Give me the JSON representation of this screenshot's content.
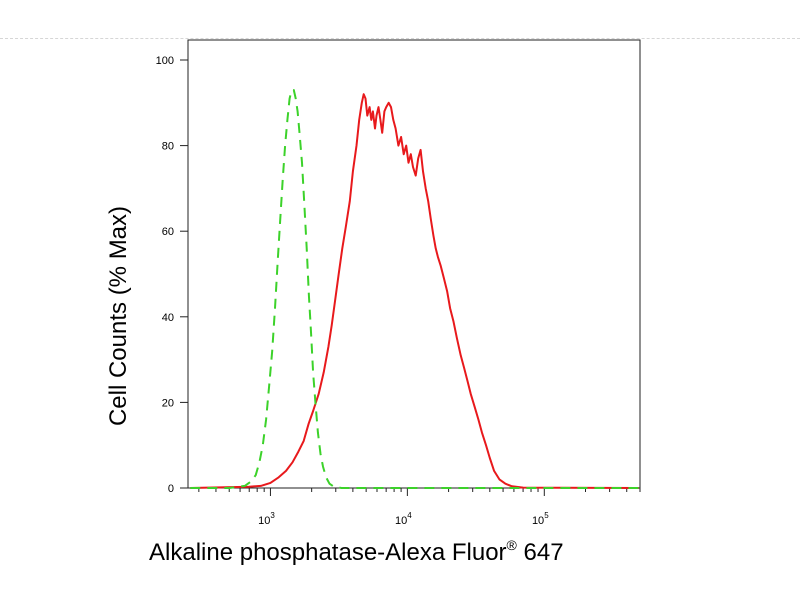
{
  "chart_data": {
    "type": "line",
    "xlabel": "Alkaline phosphatase-Alexa Fluor",
    "xlabel_sup": "®",
    "xlabel_suffix": " 647",
    "ylabel": "Cell Counts (% Max)",
    "x_scale": "log",
    "xlim": [
      250,
      500000
    ],
    "ylim": [
      0,
      100
    ],
    "y_ticks": [
      0,
      20,
      40,
      60,
      80,
      100
    ],
    "x_major_ticks": [
      {
        "value": 1000,
        "base": "10",
        "exp": "3"
      },
      {
        "value": 10000,
        "base": "10",
        "exp": "4"
      },
      {
        "value": 100000,
        "base": "10",
        "exp": "5"
      }
    ],
    "grid": false,
    "series": [
      {
        "color": "#e8191c",
        "dash": "solid",
        "points": [
          [
            700,
            0.3
          ],
          [
            850,
            0.5
          ],
          [
            1000,
            1.2
          ],
          [
            1150,
            2.5
          ],
          [
            1300,
            4
          ],
          [
            1450,
            6
          ],
          [
            1600,
            8.5
          ],
          [
            1750,
            11
          ],
          [
            1900,
            15
          ],
          [
            2050,
            18
          ],
          [
            2250,
            22
          ],
          [
            2450,
            27
          ],
          [
            2650,
            33
          ],
          [
            2800,
            38
          ],
          [
            3000,
            45
          ],
          [
            3150,
            50
          ],
          [
            3350,
            56
          ],
          [
            3550,
            61
          ],
          [
            3800,
            67
          ],
          [
            4000,
            74
          ],
          [
            4250,
            80
          ],
          [
            4450,
            86
          ],
          [
            4650,
            90
          ],
          [
            4800,
            92
          ],
          [
            4950,
            91
          ],
          [
            5100,
            87
          ],
          [
            5300,
            89
          ],
          [
            5450,
            86
          ],
          [
            5600,
            88
          ],
          [
            5800,
            84
          ],
          [
            5950,
            87
          ],
          [
            6150,
            89
          ],
          [
            6350,
            86
          ],
          [
            6550,
            83
          ],
          [
            6800,
            88
          ],
          [
            7000,
            89
          ],
          [
            7300,
            90
          ],
          [
            7600,
            89
          ],
          [
            7900,
            86
          ],
          [
            8200,
            84
          ],
          [
            8600,
            80
          ],
          [
            9000,
            82
          ],
          [
            9400,
            78
          ],
          [
            9800,
            80
          ],
          [
            10200,
            76
          ],
          [
            10600,
            78
          ],
          [
            11000,
            75
          ],
          [
            11500,
            73
          ],
          [
            12000,
            77
          ],
          [
            12500,
            79
          ],
          [
            13000,
            74
          ],
          [
            13600,
            70
          ],
          [
            14200,
            67
          ],
          [
            14800,
            63
          ],
          [
            15500,
            59
          ],
          [
            16100,
            56
          ],
          [
            16700,
            54
          ],
          [
            17500,
            52
          ],
          [
            18500,
            49
          ],
          [
            19500,
            46
          ],
          [
            20500,
            42
          ],
          [
            21700,
            39
          ],
          [
            23000,
            35
          ],
          [
            24500,
            31
          ],
          [
            26000,
            28
          ],
          [
            27500,
            25
          ],
          [
            29000,
            22
          ],
          [
            31000,
            19
          ],
          [
            33000,
            16
          ],
          [
            35000,
            13
          ],
          [
            37500,
            10
          ],
          [
            40000,
            7
          ],
          [
            43000,
            4
          ],
          [
            47000,
            2
          ],
          [
            52000,
            1
          ],
          [
            58000,
            0.4
          ],
          [
            70000,
            0.1
          ]
        ]
      },
      {
        "color": "#3cd22a",
        "dash": "dashed",
        "points": [
          [
            500,
            0
          ],
          [
            650,
            0.5
          ],
          [
            720,
            1.5
          ],
          [
            780,
            3
          ],
          [
            830,
            6
          ],
          [
            880,
            10
          ],
          [
            930,
            16
          ],
          [
            980,
            24
          ],
          [
            1030,
            32
          ],
          [
            1080,
            42
          ],
          [
            1130,
            53
          ],
          [
            1180,
            63
          ],
          [
            1230,
            72
          ],
          [
            1280,
            80
          ],
          [
            1330,
            86
          ],
          [
            1380,
            91
          ],
          [
            1430,
            93
          ],
          [
            1480,
            93
          ],
          [
            1530,
            91
          ],
          [
            1580,
            88
          ],
          [
            1630,
            83
          ],
          [
            1700,
            76
          ],
          [
            1770,
            66
          ],
          [
            1840,
            56
          ],
          [
            1910,
            45
          ],
          [
            1980,
            36
          ],
          [
            2050,
            27
          ],
          [
            2130,
            20
          ],
          [
            2220,
            13
          ],
          [
            2320,
            8
          ],
          [
            2420,
            5
          ],
          [
            2550,
            2.5
          ],
          [
            2700,
            1
          ],
          [
            2900,
            0.3
          ],
          [
            3300,
            0
          ]
        ]
      }
    ]
  }
}
